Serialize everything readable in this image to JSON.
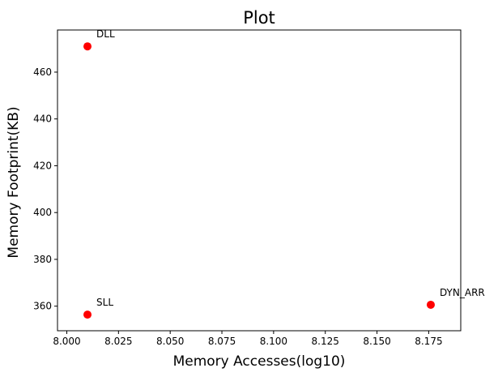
{
  "chart_data": {
    "type": "scatter",
    "title": "Plot",
    "xlabel": "Memory Accesses(log10)",
    "ylabel": "Memory Footprint(KB)",
    "xlim": [
      7.9955,
      8.1905
    ],
    "ylim": [
      349.5,
      478.0
    ],
    "xticks": [
      8.0,
      8.025,
      8.05,
      8.075,
      8.1,
      8.125,
      8.15,
      8.175
    ],
    "xtick_labels": [
      "8.000",
      "8.025",
      "8.050",
      "8.075",
      "8.100",
      "8.125",
      "8.150",
      "8.175"
    ],
    "yticks": [
      360,
      380,
      400,
      420,
      440,
      460
    ],
    "ytick_labels": [
      "360",
      "380",
      "400",
      "420",
      "440",
      "460"
    ],
    "marker_color": "#ff0000",
    "grid": false,
    "points": [
      {
        "label": "DLL",
        "x": 8.01,
        "y": 471.0
      },
      {
        "label": "SLL",
        "x": 8.01,
        "y": 356.4
      },
      {
        "label": "DYN_ARR",
        "x": 8.176,
        "y": 360.6
      }
    ]
  }
}
